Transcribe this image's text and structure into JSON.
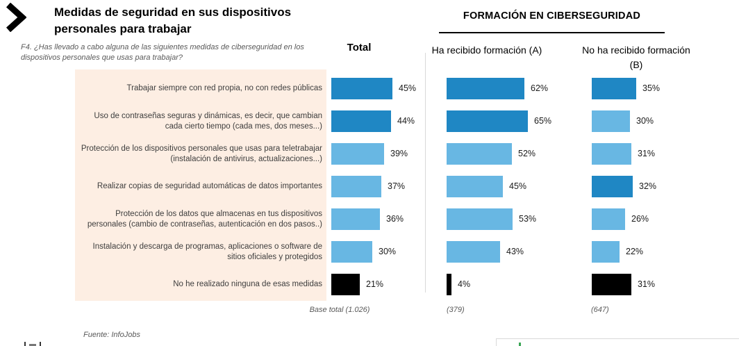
{
  "header": {
    "title": "Medidas de seguridad en sus dispositivos personales para trabajar",
    "question": "F4. ¿Has llevado a cabo alguna de las siguientes medidas de ciberseguridad en los dispositivos personales que usas para trabajar?",
    "section_title": "FORMACIÓN EN CIBERSEGURIDAD"
  },
  "columns": {
    "total": {
      "label": "Total",
      "base": "Base total (1.026)"
    },
    "trained": {
      "label": "Ha recibido formación (A)",
      "base": "(379)"
    },
    "untrained": {
      "label": "No ha recibido formación (B)",
      "base": "(647)"
    }
  },
  "footer": {
    "source": "Fuente: InfoJobs"
  },
  "colors": {
    "dark_blue": "#1f87c4",
    "light_blue": "#68b7e3",
    "black": "#000000",
    "label_panel_bg": "#fdeee3",
    "divider": "#d9d9d9",
    "muted_text": "#595959"
  },
  "chart_data": {
    "type": "bar",
    "orientation": "horizontal",
    "unit": "%",
    "title": "Medidas de seguridad en sus dispositivos personales para trabajar",
    "categories": [
      "Trabajar siempre con red propia, no con redes públicas",
      "Uso de contraseñas seguras y dinámicas, es decir, que cambian cada cierto tiempo (cada mes, dos meses...)",
      "Protección de los dispositivos personales que usas para teletrabajar (instalación de antivirus, actualizaciones...)",
      "Realizar copias de seguridad automáticas de datos importantes",
      "Protección de los datos que almacenas en tus dispositivos personales (cambio de contraseñas, autenticación en dos pasos..)",
      "Instalación y descarga de programas, aplicaciones o software de sitios oficiales y protegidos",
      "No he realizado ninguna de esas medidas"
    ],
    "series": [
      {
        "name": "Total",
        "base_label": "Base total (1.026)",
        "values": [
          45,
          44,
          39,
          37,
          36,
          30,
          21
        ],
        "bar_shades": [
          "dark",
          "dark",
          "light",
          "light",
          "light",
          "light",
          "black"
        ]
      },
      {
        "name": "Ha recibido formación (A)",
        "base_label": "(379)",
        "values": [
          62,
          65,
          52,
          45,
          53,
          43,
          4
        ],
        "bar_shades": [
          "dark",
          "dark",
          "light",
          "light",
          "light",
          "light",
          "black"
        ]
      },
      {
        "name": "No ha recibido formación (B)",
        "base_label": "(647)",
        "values": [
          35,
          30,
          31,
          32,
          26,
          22,
          31
        ],
        "bar_shades": [
          "dark",
          "light",
          "light",
          "dark",
          "light",
          "light",
          "black"
        ]
      }
    ],
    "legend_position": "none",
    "grid": false
  }
}
